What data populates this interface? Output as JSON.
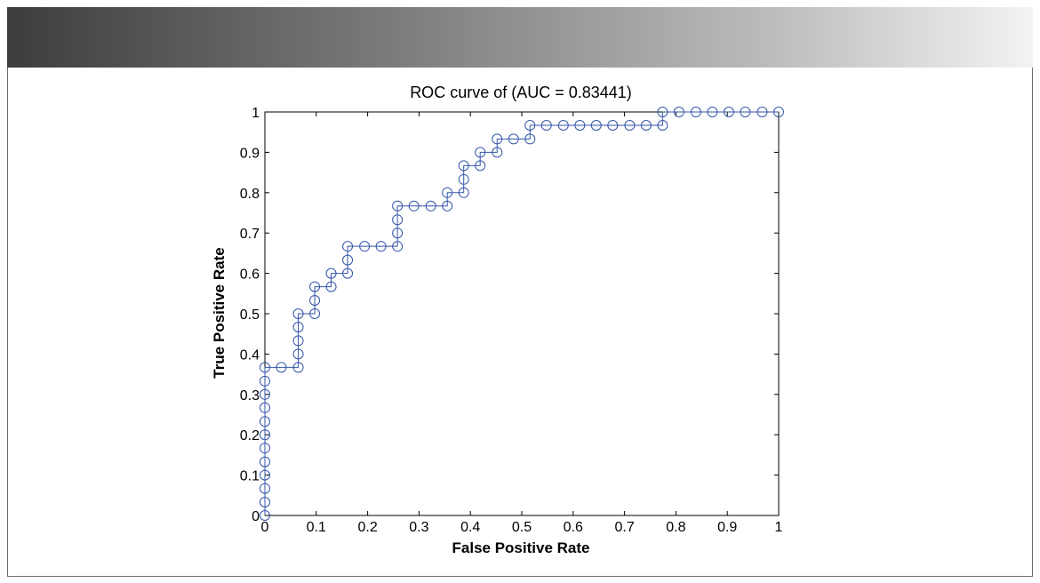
{
  "chart_data": {
    "type": "line",
    "title": "ROC curve of (AUC = 0.83441)",
    "xlabel": "False Positive Rate",
    "ylabel": "True Positive Rate",
    "xlim": [
      0,
      1
    ],
    "ylim": [
      0,
      1
    ],
    "xticks": [
      "0",
      "0.1",
      "0.2",
      "0.3",
      "0.4",
      "0.5",
      "0.6",
      "0.7",
      "0.8",
      "0.9",
      "1"
    ],
    "yticks": [
      "0",
      "0.1",
      "0.2",
      "0.3",
      "0.4",
      "0.5",
      "0.6",
      "0.7",
      "0.8",
      "0.9",
      "1"
    ],
    "grid": false,
    "series_color": "#3355aa",
    "marker": "circle",
    "x": [
      0,
      0,
      0,
      0,
      0,
      0,
      0,
      0,
      0,
      0,
      0,
      0,
      0.032,
      0.065,
      0.065,
      0.065,
      0.065,
      0.065,
      0.097,
      0.097,
      0.097,
      0.129,
      0.129,
      0.161,
      0.161,
      0.161,
      0.194,
      0.226,
      0.258,
      0.258,
      0.258,
      0.258,
      0.29,
      0.323,
      0.355,
      0.355,
      0.387,
      0.387,
      0.387,
      0.419,
      0.419,
      0.452,
      0.452,
      0.484,
      0.516,
      0.516,
      0.548,
      0.581,
      0.613,
      0.645,
      0.677,
      0.71,
      0.742,
      0.774,
      0.774,
      0.806,
      0.839,
      0.871,
      0.903,
      0.935,
      0.968,
      1
    ],
    "y": [
      0,
      0.033,
      0.067,
      0.1,
      0.133,
      0.167,
      0.2,
      0.233,
      0.267,
      0.3,
      0.333,
      0.367,
      0.367,
      0.367,
      0.4,
      0.433,
      0.467,
      0.5,
      0.5,
      0.533,
      0.567,
      0.567,
      0.6,
      0.6,
      0.633,
      0.667,
      0.667,
      0.667,
      0.667,
      0.7,
      0.733,
      0.767,
      0.767,
      0.767,
      0.767,
      0.8,
      0.8,
      0.833,
      0.867,
      0.867,
      0.9,
      0.9,
      0.933,
      0.933,
      0.933,
      0.967,
      0.967,
      0.967,
      0.967,
      0.967,
      0.967,
      0.967,
      0.967,
      0.967,
      1,
      1,
      1,
      1,
      1,
      1,
      1,
      1
    ]
  }
}
